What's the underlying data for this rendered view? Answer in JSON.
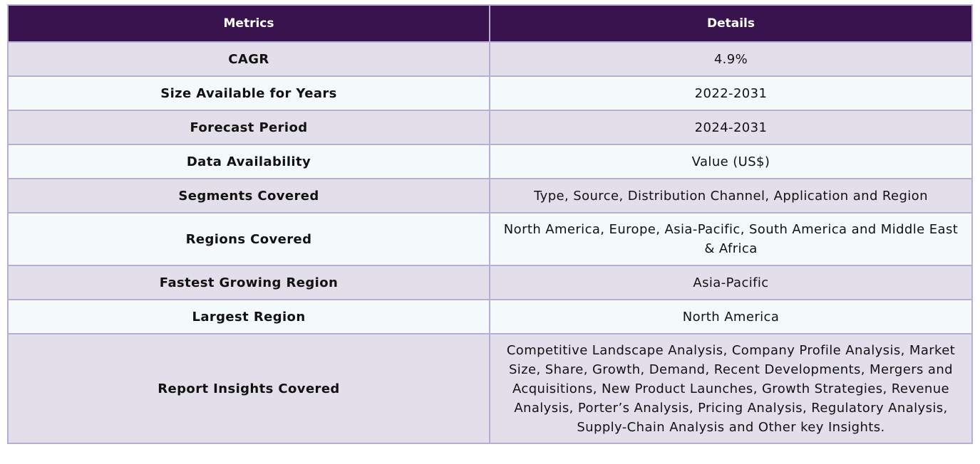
{
  "table": {
    "headers": [
      "Metrics",
      "Details"
    ],
    "rows": [
      {
        "metric": "CAGR",
        "detail": "4.9%"
      },
      {
        "metric": "Size Available for Years",
        "detail": "2022-2031"
      },
      {
        "metric": "Forecast Period",
        "detail": "2024-2031"
      },
      {
        "metric": "Data Availability",
        "detail": "Value (US$)"
      },
      {
        "metric": "Segments Covered",
        "detail": "Type, Source, Distribution Channel, Application and Region"
      },
      {
        "metric": "Regions Covered",
        "detail": "North America, Europe, Asia-Pacific, South America and Middle East & Africa"
      },
      {
        "metric": "Fastest Growing Region",
        "detail": "Asia-Pacific"
      },
      {
        "metric": "Largest Region",
        "detail": "North America"
      },
      {
        "metric": "Report Insights Covered",
        "detail": "Competitive Landscape Analysis, Company Profile Analysis, Market Size, Share, Growth, Demand, Recent Developments, Mergers and Acquisitions, New Product Launches, Growth Strategies, Revenue Analysis, Porter’s Analysis, Pricing Analysis, Regulatory Analysis, Supply-Chain Analysis and Other key Insights."
      }
    ]
  },
  "colors": {
    "header_bg": "#38134d",
    "odd_row_bg": "#e3dfea",
    "even_row_bg": "#f4f9fc",
    "border": "#b8aed3"
  }
}
